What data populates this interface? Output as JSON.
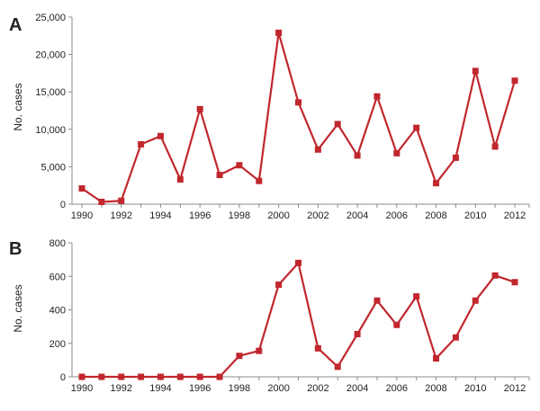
{
  "chart_data": [
    {
      "type": "line",
      "panel_label": "A",
      "ylabel": "No. cases",
      "xlabel": "",
      "x": [
        1990,
        1991,
        1992,
        1993,
        1994,
        1995,
        1996,
        1997,
        1998,
        1999,
        2000,
        2001,
        2002,
        2003,
        2004,
        2005,
        2006,
        2007,
        2008,
        2009,
        2010,
        2011,
        2012
      ],
      "values": [
        2100,
        300,
        450,
        8000,
        9100,
        3300,
        12700,
        3900,
        5200,
        3100,
        22900,
        13600,
        7300,
        10700,
        6500,
        14400,
        6800,
        10200,
        2800,
        6200,
        17800,
        7700,
        16500
      ],
      "xlim": [
        1990,
        2012
      ],
      "ylim": [
        0,
        25000
      ],
      "yticks": [
        0,
        5000,
        10000,
        15000,
        20000,
        25000
      ],
      "ytick_labels": [
        "0",
        "5,000",
        "10,000",
        "15,000",
        "20,000",
        "25,000"
      ],
      "xticks": [
        1990,
        1992,
        1994,
        1996,
        1998,
        2000,
        2002,
        2004,
        2006,
        2008,
        2010,
        2012
      ],
      "xtick_labels": [
        "1990",
        "1992",
        "1994",
        "1996",
        "1998",
        "2000",
        "2002",
        "2004",
        "2006",
        "2008",
        "2010",
        "2012"
      ],
      "grid": false,
      "marker": "square",
      "color": "#c1272d"
    },
    {
      "type": "line",
      "panel_label": "B",
      "ylabel": "No. cases",
      "xlabel": "",
      "x": [
        1990,
        1991,
        1992,
        1993,
        1994,
        1995,
        1996,
        1997,
        1998,
        1999,
        2000,
        2001,
        2002,
        2003,
        2004,
        2005,
        2006,
        2007,
        2008,
        2009,
        2010,
        2011,
        2012
      ],
      "values": [
        0,
        0,
        0,
        0,
        0,
        0,
        0,
        0,
        125,
        155,
        550,
        680,
        170,
        60,
        255,
        455,
        310,
        480,
        110,
        235,
        455,
        605,
        565
      ],
      "xlim": [
        1990,
        2012
      ],
      "ylim": [
        0,
        800
      ],
      "yticks": [
        0,
        200,
        400,
        600,
        800
      ],
      "ytick_labels": [
        "0",
        "200",
        "400",
        "600",
        "800"
      ],
      "xticks": [
        1990,
        1992,
        1994,
        1996,
        1998,
        2000,
        2002,
        2004,
        2006,
        2008,
        2010,
        2012
      ],
      "xtick_labels": [
        "1990",
        "1992",
        "1994",
        "1996",
        "1998",
        "2000",
        "2002",
        "2004",
        "2006",
        "2008",
        "2010",
        "2012"
      ],
      "grid": false,
      "marker": "square",
      "color": "#c1272d"
    }
  ]
}
